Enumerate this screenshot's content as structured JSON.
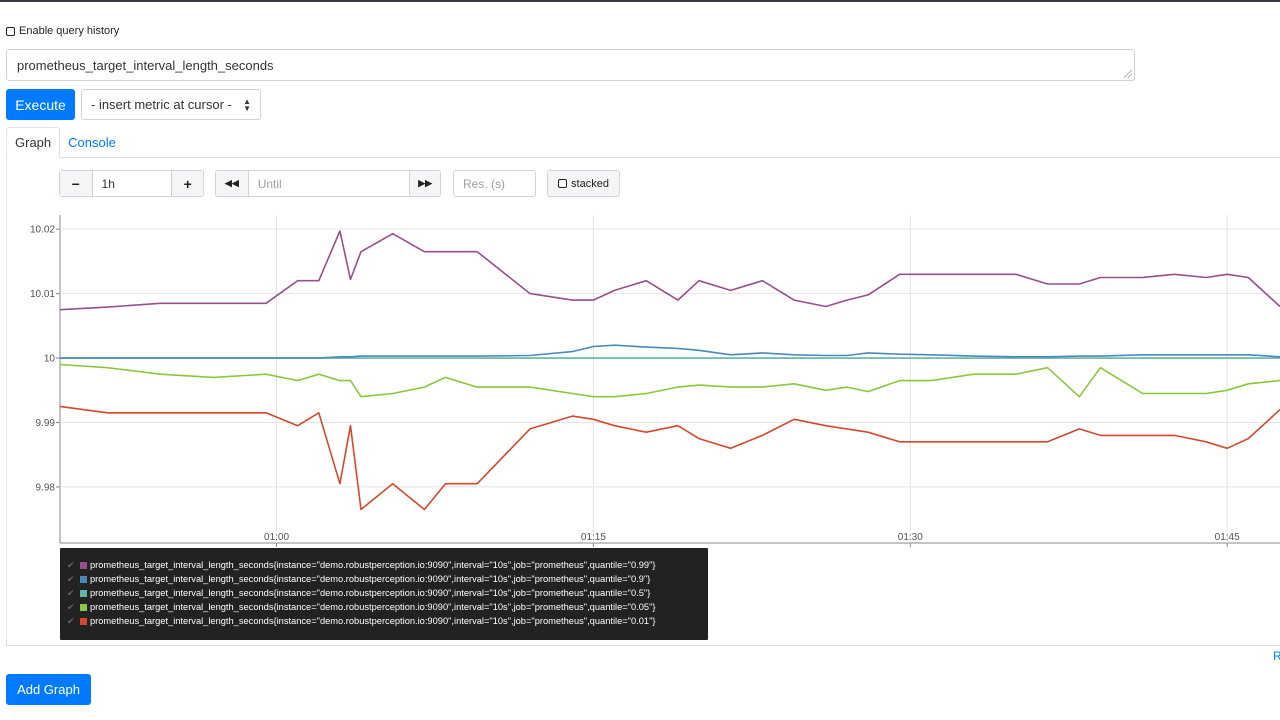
{
  "query_history": {
    "label": "Enable query history",
    "checked": false
  },
  "expression": {
    "value": "prometheus_target_interval_length_seconds"
  },
  "execute_label": "Execute",
  "metric_select": {
    "label": "- insert metric at cursor -"
  },
  "tabs": [
    {
      "label": "Graph",
      "active": true
    },
    {
      "label": "Console",
      "active": false
    }
  ],
  "controls": {
    "range_minus": "−",
    "range": "1h",
    "range_plus": "+",
    "back": "◀◀",
    "until_placeholder": "Until",
    "forward": "▶▶",
    "res_placeholder": "Res. (s)",
    "stacked_label": "stacked",
    "stacked_checked": false
  },
  "chart_data": {
    "type": "line",
    "title": "",
    "xlabel": "",
    "ylabel": "",
    "x_ticks": [
      "01:00",
      "01:15",
      "01:30",
      "01:45"
    ],
    "y_ticks": [
      "9.98",
      "9.99",
      "10",
      "10.01",
      "10.02"
    ],
    "ylim": [
      9.9713,
      10.0222
    ],
    "xlim": [
      "00:49:45",
      "01:47:30"
    ],
    "grid": true,
    "legend_position": "bottom-left",
    "x": [
      "00:49:45",
      "00:52:00",
      "00:54:30",
      "00:57:00",
      "00:59:30",
      "01:01:00",
      "01:02:00",
      "01:03:00",
      "01:03:30",
      "01:04:00",
      "01:05:30",
      "01:07:00",
      "01:08:00",
      "01:09:30",
      "01:12:00",
      "01:14:00",
      "01:15:00",
      "01:16:00",
      "01:17:30",
      "01:19:00",
      "01:20:00",
      "01:21:30",
      "01:23:00",
      "01:24:30",
      "01:26:00",
      "01:27:00",
      "01:28:00",
      "01:29:30",
      "01:31:00",
      "01:33:00",
      "01:35:00",
      "01:36:30",
      "01:38:00",
      "01:39:00",
      "01:41:00",
      "01:42:30",
      "01:44:00",
      "01:45:00",
      "01:46:00",
      "01:47:30"
    ],
    "series": [
      {
        "name": "prometheus_target_interval_length_seconds{instance=\"demo.robustperception.io:9090\",interval=\"10s\",job=\"prometheus\",quantile=\"0.99\"}",
        "color": "#94518b",
        "values": [
          10.0075,
          10.0079,
          10.0085,
          10.0085,
          10.0085,
          10.012,
          10.012,
          10.0197,
          10.0122,
          10.0165,
          10.0193,
          10.0165,
          10.0165,
          10.0165,
          10.01,
          10.009,
          10.009,
          10.0105,
          10.012,
          10.009,
          10.012,
          10.0105,
          10.012,
          10.009,
          10.008,
          10.009,
          10.0098,
          10.013,
          10.013,
          10.013,
          10.013,
          10.0115,
          10.0115,
          10.0125,
          10.0125,
          10.013,
          10.0125,
          10.013,
          10.0125,
          10.008
        ]
      },
      {
        "name": "prometheus_target_interval_length_seconds{instance=\"demo.robustperception.io:9090\",interval=\"10s\",job=\"prometheus\",quantile=\"0.9\"}",
        "color": "#4b8ab8",
        "values": [
          10.0,
          10.0,
          10.0,
          10.0,
          10.0,
          10.0,
          10.0,
          10.0002,
          10.0002,
          10.0003,
          10.0003,
          10.0003,
          10.0003,
          10.0003,
          10.0004,
          10.001,
          10.0018,
          10.002,
          10.0017,
          10.0015,
          10.0012,
          10.0005,
          10.0008,
          10.0005,
          10.0004,
          10.0004,
          10.0008,
          10.0006,
          10.0005,
          10.0003,
          10.0002,
          10.0002,
          10.0003,
          10.0003,
          10.0005,
          10.0005,
          10.0005,
          10.0005,
          10.0005,
          10.0002
        ]
      },
      {
        "name": "prometheus_target_interval_length_seconds{instance=\"demo.robustperception.io:9090\",interval=\"10s\",job=\"prometheus\",quantile=\"0.5\"}",
        "color": "#5fb5a6",
        "values": [
          10.0,
          10.0,
          10.0,
          10.0,
          10.0,
          10.0,
          10.0,
          10.0,
          10.0,
          10.0,
          10.0,
          10.0,
          10.0,
          10.0,
          10.0,
          10.0,
          10.0,
          10.0,
          10.0,
          10.0,
          10.0,
          10.0,
          10.0,
          10.0,
          10.0,
          10.0,
          10.0,
          10.0,
          10.0,
          10.0,
          10.0,
          10.0,
          10.0,
          10.0,
          10.0,
          10.0,
          10.0,
          10.0,
          10.0,
          10.0
        ]
      },
      {
        "name": "prometheus_target_interval_length_seconds{instance=\"demo.robustperception.io:9090\",interval=\"10s\",job=\"prometheus\",quantile=\"0.05\"}",
        "color": "#8cc63f",
        "values": [
          9.999,
          9.9985,
          9.9975,
          9.997,
          9.9975,
          9.9965,
          9.9975,
          9.9965,
          9.9965,
          9.994,
          9.9945,
          9.9955,
          9.997,
          9.9955,
          9.9955,
          9.9945,
          9.994,
          9.994,
          9.9945,
          9.9955,
          9.9958,
          9.9955,
          9.9955,
          9.996,
          9.995,
          9.9955,
          9.9948,
          9.9965,
          9.9965,
          9.9975,
          9.9975,
          9.9985,
          9.994,
          9.9985,
          9.9945,
          9.9945,
          9.9945,
          9.995,
          9.996,
          9.9965
        ]
      },
      {
        "name": "prometheus_target_interval_length_seconds{instance=\"demo.robustperception.io:9090\",interval=\"10s\",job=\"prometheus\",quantile=\"0.01\"}",
        "color": "#d2492f",
        "values": [
          9.9925,
          9.9915,
          9.9915,
          9.9915,
          9.9915,
          9.9895,
          9.9915,
          9.9805,
          9.9895,
          9.9765,
          9.9805,
          9.9765,
          9.9805,
          9.9805,
          9.989,
          9.991,
          9.9905,
          9.9895,
          9.9885,
          9.9895,
          9.9875,
          9.986,
          9.988,
          9.9905,
          9.9895,
          9.989,
          9.9885,
          9.987,
          9.987,
          9.987,
          9.987,
          9.987,
          9.989,
          9.988,
          9.988,
          9.988,
          9.987,
          9.986,
          9.9875,
          9.992
        ]
      }
    ]
  },
  "remove_link": "R",
  "add_graph_label": "Add Graph"
}
